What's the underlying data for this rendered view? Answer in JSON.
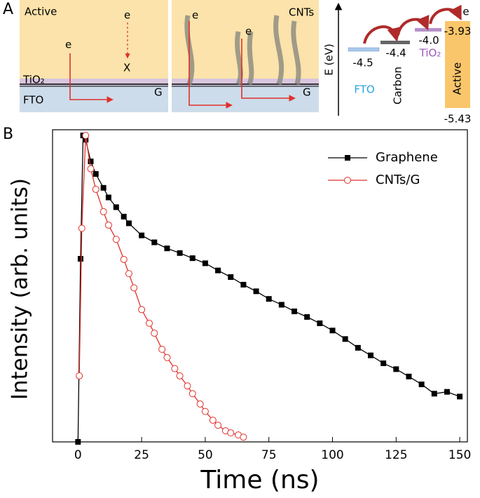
{
  "panel_a": {
    "label": "A",
    "left": {
      "active": "Active",
      "e_top": "e",
      "x_mark": "X",
      "e_path": "e",
      "tio2": "TiO₂",
      "fto": "FTO",
      "g": "G"
    },
    "right": {
      "e1": "e",
      "e2": "e",
      "cnts": "CNTs",
      "g": "G"
    },
    "energy": {
      "axis": "E (eV)",
      "fto_level": "-4.5",
      "fto": "FTO",
      "carbon_level": "-4.4",
      "carbon": "Carbon",
      "tio2_level": "-4.0",
      "tio2": "TiO₂",
      "e": "e",
      "active_top": "-3.93",
      "active": "Active",
      "active_bottom": "-5.43"
    }
  },
  "chart_data": {
    "type": "line",
    "panel_label": "B",
    "x_label": "Time (ns)",
    "y_label": "Intensity (arb. units)",
    "xlim": [
      -10,
      153
    ],
    "xticks": [
      0,
      25,
      50,
      75,
      100,
      125,
      150
    ],
    "ylim": [
      0.002,
      1.1
    ],
    "log_y": true,
    "legend": "upper right",
    "series": [
      {
        "name": "Graphene",
        "color": "#000000",
        "marker": "square",
        "x": [
          0,
          1,
          2,
          3,
          5,
          7,
          10,
          12,
          15,
          18,
          20,
          25,
          30,
          35,
          40,
          45,
          50,
          55,
          60,
          65,
          70,
          75,
          80,
          85,
          90,
          95,
          100,
          105,
          110,
          115,
          120,
          125,
          130,
          135,
          140,
          145,
          150
        ],
        "values": [
          0.002,
          0.081,
          0.98,
          0.9,
          0.58,
          0.45,
          0.34,
          0.28,
          0.23,
          0.19,
          0.166,
          0.13,
          0.113,
          0.1,
          0.091,
          0.082,
          0.074,
          0.064,
          0.056,
          0.048,
          0.042,
          0.036,
          0.032,
          0.028,
          0.025,
          0.022,
          0.019,
          0.016,
          0.0134,
          0.0115,
          0.0098,
          0.0087,
          0.0075,
          0.0064,
          0.0053,
          0.0055,
          0.005
        ]
      },
      {
        "name": "CNTs/G",
        "color": "#e0302a",
        "marker": "circle",
        "x": [
          0.5,
          1.5,
          3,
          5,
          7,
          10,
          12,
          15,
          18,
          20,
          22,
          25,
          28,
          30,
          33,
          35,
          38,
          40,
          43,
          45,
          48,
          50,
          53,
          55,
          58,
          60,
          63,
          65
        ],
        "values": [
          0.0076,
          0.15,
          0.98,
          0.5,
          0.33,
          0.21,
          0.16,
          0.12,
          0.08,
          0.06,
          0.045,
          0.029,
          0.022,
          0.018,
          0.013,
          0.011,
          0.0088,
          0.0076,
          0.0062,
          0.0053,
          0.0043,
          0.0037,
          0.0031,
          0.0028,
          0.0025,
          0.0024,
          0.0023,
          0.0022
        ]
      }
    ]
  }
}
